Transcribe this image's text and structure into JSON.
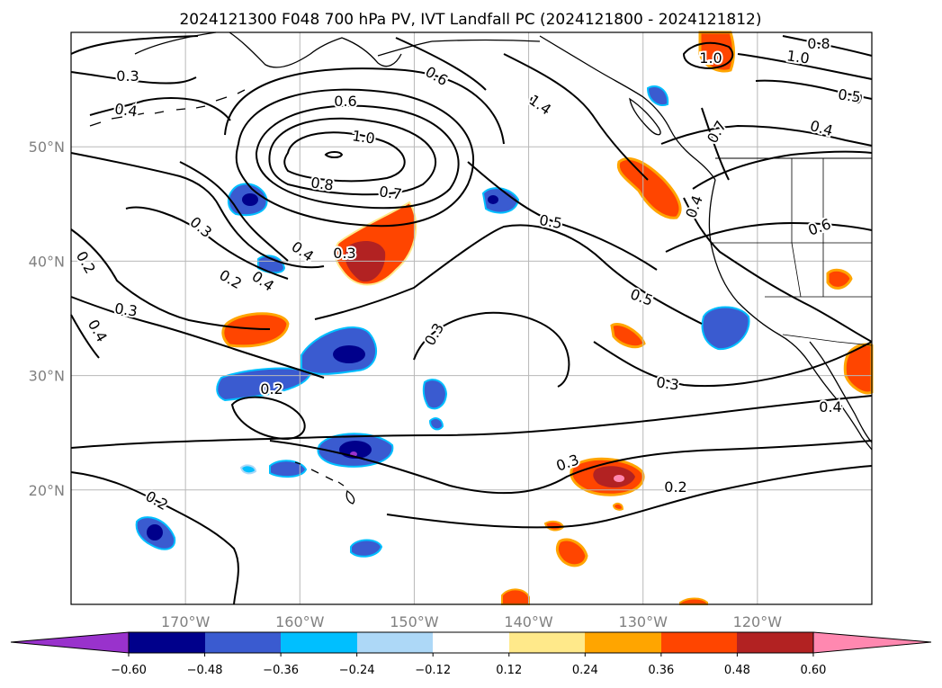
{
  "title": "2024121300 F048 700 hPa PV, IVT Landfall PC (2024121800 - 2024121812)",
  "map": {
    "lon_range": [
      180,
      110
    ],
    "lat_range": [
      10,
      60
    ],
    "lat_ticks": [
      {
        "value": 20,
        "label": "20°N"
      },
      {
        "value": 30,
        "label": "30°N"
      },
      {
        "value": 40,
        "label": "40°N"
      },
      {
        "value": 50,
        "label": "50°N"
      }
    ],
    "lon_ticks": [
      {
        "value": 170,
        "label": "170°W"
      },
      {
        "value": 160,
        "label": "160°W"
      },
      {
        "value": 150,
        "label": "150°W"
      },
      {
        "value": 140,
        "label": "140°W"
      },
      {
        "value": 130,
        "label": "130°W"
      },
      {
        "value": 120,
        "label": "120°W"
      }
    ],
    "grid": true,
    "contour_labels": [
      "0.3",
      "0.4",
      "0.6",
      "1.0",
      "0.6",
      "0.4",
      "1.0",
      "0.8",
      "0.7",
      "0.4",
      "0.3",
      "0.3",
      "0.2",
      "0.4",
      "0.2",
      "0.3",
      "0.4",
      "0.2",
      "0.5",
      "0.3",
      "0.5",
      "0.3",
      "0.2",
      "0.3",
      "0.2",
      "0.4",
      "0.6",
      "0.4",
      "1.4",
      "1.0",
      "1.0",
      "0.5",
      "0.4",
      "0.8",
      "0.7"
    ]
  },
  "colorbar": {
    "ticks": [
      "−0.60",
      "−0.48",
      "−0.36",
      "−0.24",
      "−0.12",
      "0.12",
      "0.24",
      "0.36",
      "0.48",
      "0.60"
    ],
    "colors": {
      "under": "#9932cc",
      "n060": "#00008b",
      "n048": "#3a5bd0",
      "n036": "#00bfff",
      "n024": "#add8f7",
      "n012": "#ffffff",
      "p012": "#ffe98a",
      "p024": "#ffa500",
      "p036": "#ff4500",
      "p048": "#b22222",
      "over": "#ff88b0"
    }
  }
}
